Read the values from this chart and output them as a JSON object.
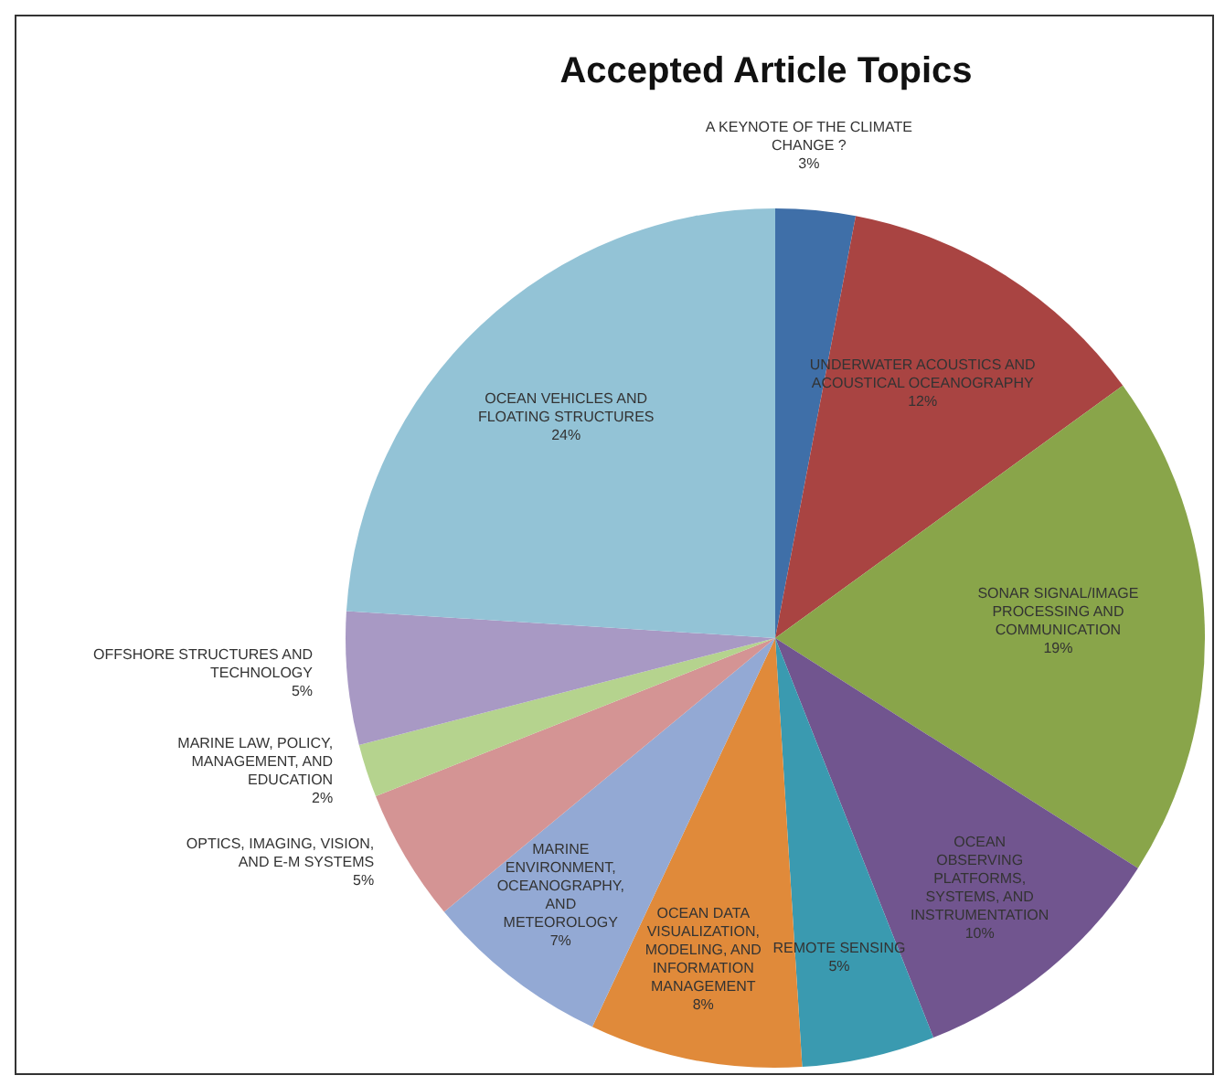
{
  "chart_data": {
    "type": "pie",
    "title": "Accepted Article Topics",
    "categories": [
      "A KEYNOTE OF THE CLIMATE CHANGE ?",
      "UNDERWATER ACOUSTICS AND ACOUSTICAL OCEANOGRAPHY",
      "SONAR SIGNAL/IMAGE PROCESSING AND COMMUNICATION",
      "OCEAN OBSERVING PLATFORMS, SYSTEMS, AND INSTRUMENTATION",
      "REMOTE SENSING",
      "OCEAN DATA VISUALIZATION, MODELING, AND INFORMATION MANAGEMENT",
      "MARINE ENVIRONMENT, OCEANOGRAPHY, AND METEOROLOGY",
      "OPTICS, IMAGING, VISION, AND E-M SYSTEMS",
      "MARINE LAW, POLICY, MANAGEMENT, AND EDUCATION",
      "OFFSHORE STRUCTURES AND TECHNOLOGY",
      "OCEAN VEHICLES AND FLOATING STRUCTURES"
    ],
    "values": [
      3,
      12,
      19,
      10,
      5,
      8,
      7,
      5,
      2,
      5,
      24
    ],
    "colors": [
      "#3f6fa8",
      "#a94442",
      "#89a54a",
      "#71558f",
      "#3a9ab0",
      "#e08a3a",
      "#93a9d4",
      "#d49494",
      "#b5d38e",
      "#a899c4",
      "#93c3d6"
    ],
    "value_labels": [
      "3%",
      "12%",
      "19%",
      "10%",
      "5%",
      "8%",
      "7%",
      "5%",
      "2%",
      "5%",
      "24%"
    ]
  }
}
